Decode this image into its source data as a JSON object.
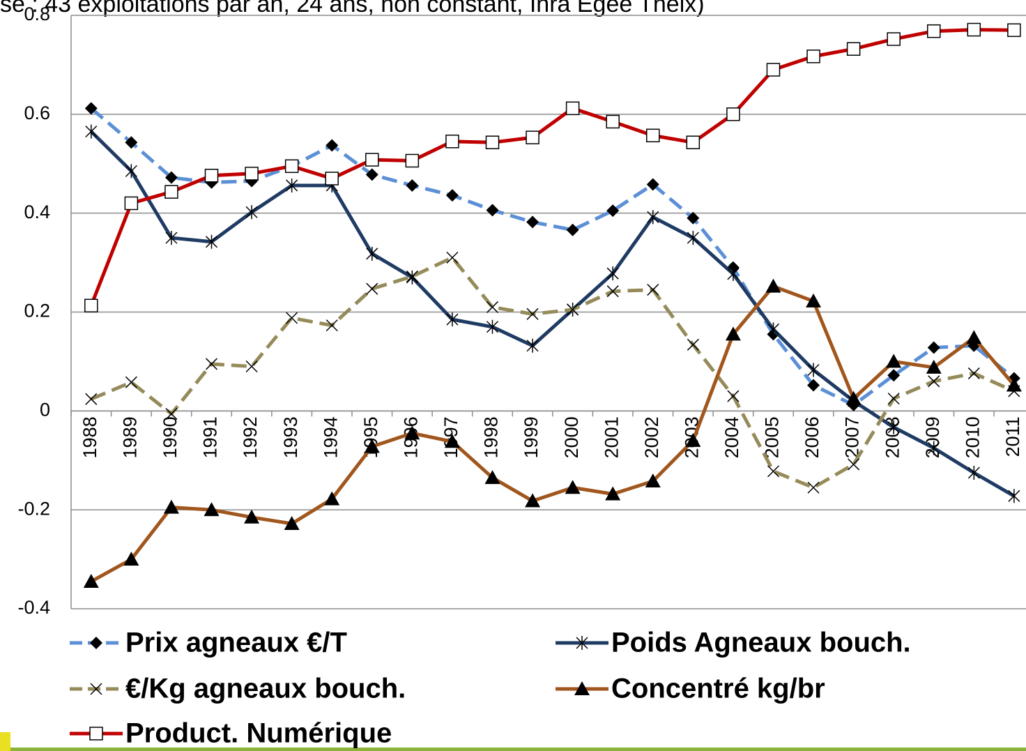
{
  "chart_data": {
    "type": "line",
    "title": "se : 43 exploitations par an, 24 ans, non constant, Inra Egée Theix)",
    "categories": [
      "1988",
      "1989",
      "1990",
      "1991",
      "1992",
      "1993",
      "1994",
      "1995",
      "1996",
      "1997",
      "1998",
      "1999",
      "2000",
      "2001",
      "2002",
      "2003",
      "2004",
      "2005",
      "2006",
      "2007",
      "2008",
      "2009",
      "2010",
      "2011"
    ],
    "ylim": [
      -0.4,
      0.8
    ],
    "yticks": [
      -0.4,
      -0.2,
      0,
      0.2,
      0.4,
      0.6,
      0.8
    ],
    "grid": true,
    "series": [
      {
        "name": "Prix agneaux €/T",
        "color": "#5b8fd6",
        "dash": true,
        "marker": "diamond",
        "values": [
          0.612,
          0.543,
          0.472,
          0.462,
          0.465,
          0.495,
          0.537,
          0.478,
          0.456,
          0.436,
          0.406,
          0.382,
          0.366,
          0.405,
          0.458,
          0.39,
          0.29,
          0.155,
          0.052,
          0.012,
          0.072,
          0.128,
          0.132,
          0.066
        ]
      },
      {
        "name": "Poids Agneaux bouch.",
        "color": "#1f3b63",
        "dash": false,
        "marker": "asterisk",
        "values": [
          0.565,
          0.485,
          0.35,
          0.342,
          0.402,
          0.456,
          0.456,
          0.318,
          0.27,
          0.185,
          0.17,
          0.132,
          0.205,
          0.278,
          0.392,
          0.35,
          0.277,
          0.165,
          0.083,
          0.02,
          -0.033,
          -0.075,
          -0.125,
          -0.172
        ]
      },
      {
        "name": "€/Kg agneaux bouch.",
        "color": "#958b5a",
        "dash": true,
        "marker": "cross",
        "values": [
          0.024,
          0.058,
          -0.006,
          0.095,
          0.09,
          0.188,
          0.173,
          0.247,
          0.272,
          0.31,
          0.21,
          0.196,
          0.205,
          0.242,
          0.245,
          0.134,
          0.03,
          -0.122,
          -0.155,
          -0.108,
          0.025,
          0.06,
          0.076,
          0.04
        ]
      },
      {
        "name": "Concentré kg/br",
        "color": "#a0561d",
        "dash": false,
        "marker": "triangle",
        "values": [
          -0.345,
          -0.3,
          -0.195,
          -0.2,
          -0.215,
          -0.228,
          -0.178,
          -0.072,
          -0.045,
          -0.062,
          -0.135,
          -0.182,
          -0.155,
          -0.168,
          -0.142,
          -0.06,
          0.155,
          0.252,
          0.222,
          0.025,
          0.1,
          0.088,
          0.148,
          0.052
        ]
      },
      {
        "name": "Product. Numérique",
        "color": "#c00000",
        "dash": false,
        "marker": "square",
        "values": [
          0.213,
          0.42,
          0.443,
          0.476,
          0.48,
          0.495,
          0.47,
          0.508,
          0.506,
          0.545,
          0.543,
          0.553,
          0.612,
          0.585,
          0.557,
          0.543,
          0.6,
          0.69,
          0.717,
          0.732,
          0.752,
          0.768,
          0.771,
          0.77
        ]
      }
    ]
  }
}
